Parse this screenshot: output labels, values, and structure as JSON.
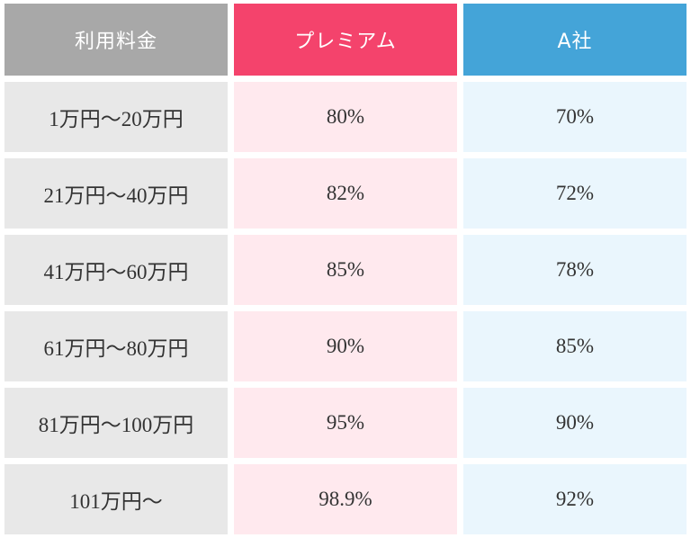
{
  "colors": {
    "header_fee": "#a8a8a8",
    "header_premium": "#f4436c",
    "header_a": "#44a4d8",
    "col_fee_bg": "#e8e8e8",
    "col_premium_bg": "#ffe9ee",
    "col_a_bg": "#eaf6fd"
  },
  "table": {
    "headers": [
      "利用料金",
      "プレミアム",
      "A社"
    ],
    "rows": [
      [
        "1万円〜20万円",
        "80%",
        "70%"
      ],
      [
        "21万円〜40万円",
        "82%",
        "72%"
      ],
      [
        "41万円〜60万円",
        "85%",
        "78%"
      ],
      [
        "61万円〜80万円",
        "90%",
        "85%"
      ],
      [
        "81万円〜100万円",
        "95%",
        "90%"
      ],
      [
        "101万円〜",
        "98.9%",
        "92%"
      ]
    ]
  }
}
